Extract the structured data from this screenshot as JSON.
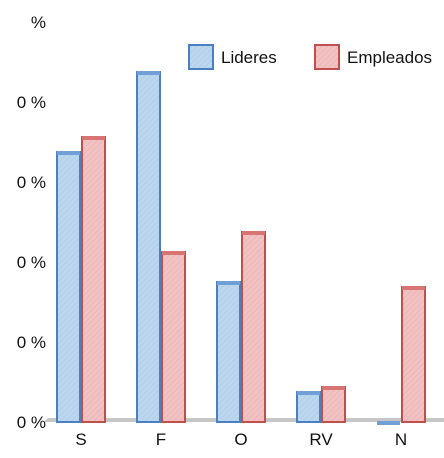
{
  "chart_data": {
    "type": "bar",
    "categories": [
      "S",
      "F",
      "O",
      "RV",
      "N"
    ],
    "series": [
      {
        "name": "Lideres",
        "values": [
          54,
          70,
          28,
          6,
          0
        ],
        "fill": "#bcd6ee",
        "stroke": "#4a7fc1",
        "top": "#6f9fd6"
      },
      {
        "name": "Empleados",
        "values": [
          57,
          34,
          38,
          7,
          27
        ],
        "fill": "#f2c2c2",
        "stroke": "#c0504d",
        "top": "#d87471"
      }
    ],
    "y_ticks": [
      {
        "value": 0,
        "label": "0 %"
      },
      {
        "value": 16,
        "label": "0 %"
      },
      {
        "value": 32,
        "label": "0 %"
      },
      {
        "value": 48,
        "label": "0 %"
      },
      {
        "value": 64,
        "label": "0 %"
      },
      {
        "value": 80,
        "label": "%"
      }
    ],
    "ylim": [
      0,
      80
    ],
    "title": "",
    "xlabel": "",
    "ylabel": "",
    "grid": false,
    "legend_position": "top-right",
    "colors": {
      "floor": "#c6c6c6",
      "text": "#111111"
    }
  }
}
